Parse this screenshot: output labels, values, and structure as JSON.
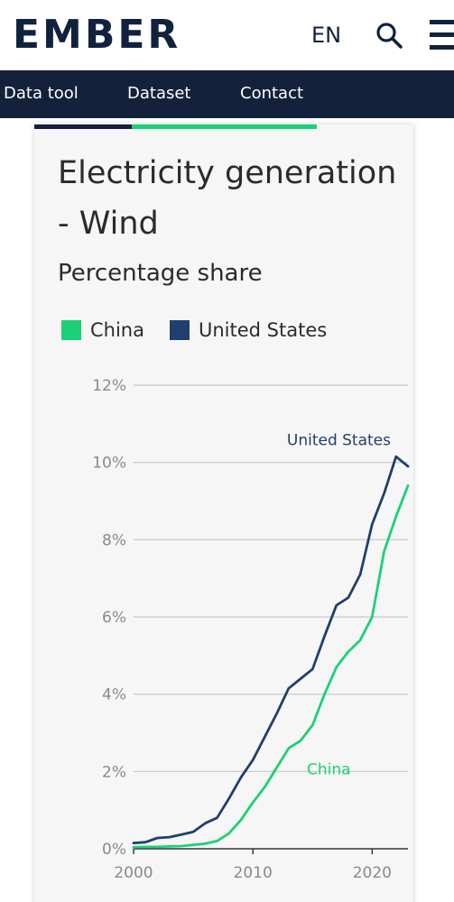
{
  "header": {
    "logo": "EMBER",
    "language": "EN",
    "search_icon": "search-icon",
    "menu_icon": "hamburger-menu-icon"
  },
  "nav": {
    "items": [
      {
        "label": "Data tool"
      },
      {
        "label": "Dataset"
      },
      {
        "label": "Contact"
      }
    ]
  },
  "colors": {
    "brand_dark": "#13213b",
    "accent_green": "#1ad275",
    "china": "#1ad275",
    "united_states": "#1f3f6e"
  },
  "chart_data": {
    "type": "line",
    "title": "Electricity generation - Wind",
    "subtitle": "Percentage share",
    "x": [
      2000,
      2001,
      2002,
      2003,
      2004,
      2005,
      2006,
      2007,
      2008,
      2009,
      2010,
      2011,
      2012,
      2013,
      2014,
      2015,
      2016,
      2017,
      2018,
      2019,
      2020,
      2021,
      2022,
      2023
    ],
    "series": [
      {
        "name": "China",
        "color": "#1ad275",
        "values": [
          0.04,
          0.05,
          0.05,
          0.06,
          0.07,
          0.1,
          0.13,
          0.2,
          0.4,
          0.75,
          1.2,
          1.6,
          2.1,
          2.6,
          2.8,
          3.2,
          4.0,
          4.7,
          5.1,
          5.4,
          6.0,
          7.7,
          8.6,
          9.4
        ]
      },
      {
        "name": "United States",
        "color": "#1f3f6e",
        "values": [
          0.15,
          0.17,
          0.28,
          0.3,
          0.37,
          0.44,
          0.66,
          0.8,
          1.3,
          1.85,
          2.3,
          2.9,
          3.5,
          4.15,
          4.4,
          4.65,
          5.5,
          6.3,
          6.5,
          7.1,
          8.4,
          9.2,
          10.15,
          9.9
        ]
      }
    ],
    "ylim": [
      0,
      12
    ],
    "yticks": [
      0,
      2,
      4,
      6,
      8,
      10,
      12
    ],
    "ytick_labels": [
      "0%",
      "2%",
      "4%",
      "6%",
      "8%",
      "10%",
      "12%"
    ],
    "xlim": [
      2000,
      2023
    ],
    "xticks": [
      2000,
      2010,
      2020
    ],
    "xtick_labels": [
      "2000",
      "2010",
      "2020"
    ],
    "xlabel": "",
    "ylabel": "",
    "grid": true,
    "legend": "top-left",
    "annotations": [
      {
        "text": "United States",
        "series": "United States"
      },
      {
        "text": "China",
        "series": "China"
      }
    ]
  }
}
